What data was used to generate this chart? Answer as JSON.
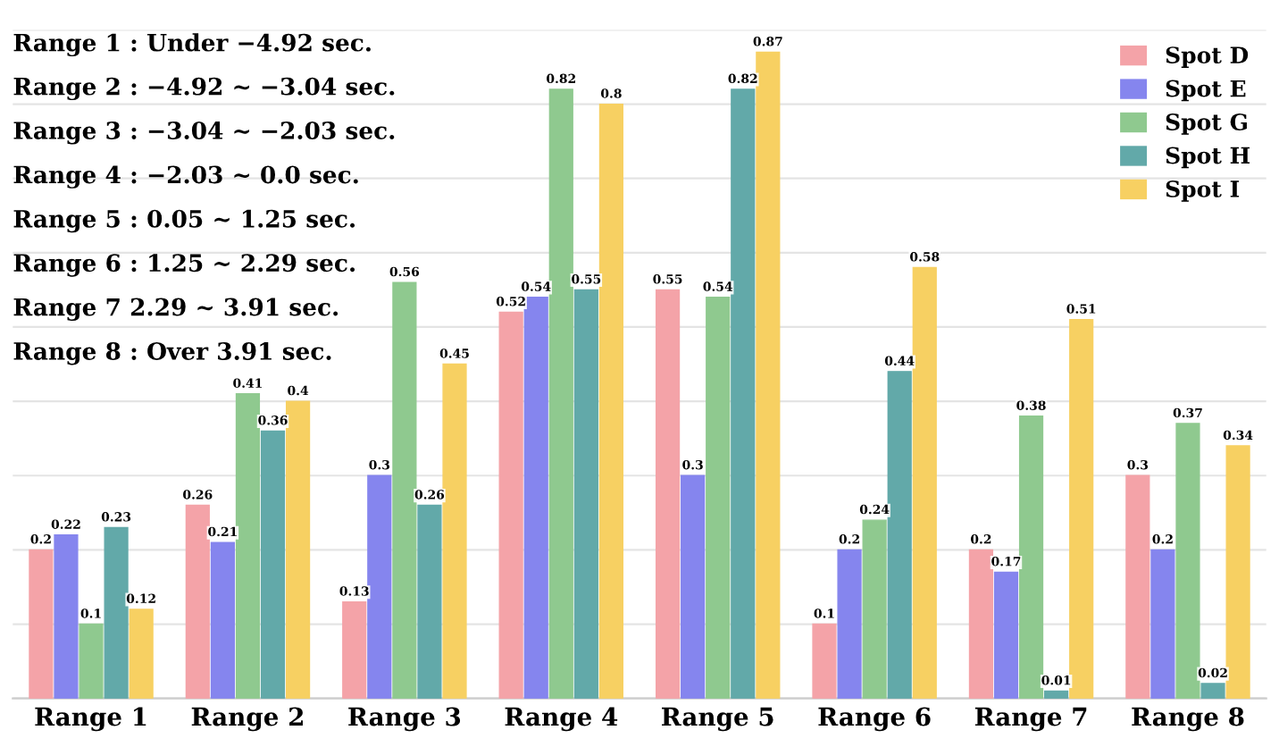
{
  "chart_data": {
    "type": "bar",
    "categories": [
      "Range 1",
      "Range 2",
      "Range 3",
      "Range 4",
      "Range 5",
      "Range 6",
      "Range 7",
      "Range 8"
    ],
    "series": [
      {
        "name": "Spot D",
        "color": "#f4a3a8",
        "values": [
          0.2,
          0.26,
          0.13,
          0.52,
          0.55,
          0.1,
          0.2,
          0.3
        ]
      },
      {
        "name": "Spot E",
        "color": "#8585ee",
        "values": [
          0.22,
          0.21,
          0.3,
          0.54,
          0.3,
          0.2,
          0.17,
          0.2
        ]
      },
      {
        "name": "Spot G",
        "color": "#8fc98f",
        "values": [
          0.1,
          0.41,
          0.56,
          0.82,
          0.54,
          0.24,
          0.38,
          0.37
        ]
      },
      {
        "name": "Spot H",
        "color": "#62a9a9",
        "values": [
          0.23,
          0.36,
          0.26,
          0.55,
          0.82,
          0.44,
          0.01,
          0.02
        ]
      },
      {
        "name": "Spot I",
        "color": "#f7d062",
        "values": [
          0.12,
          0.4,
          0.45,
          0.8,
          0.87,
          0.58,
          0.51,
          0.34
        ]
      }
    ],
    "ylim": [
      0,
      0.9
    ],
    "yticks": [
      {
        "value": 0,
        "label": null
      },
      {
        "value": 0.1,
        "label": null
      },
      {
        "value": 0.2,
        "label": null
      },
      {
        "value": 0.3,
        "label": null
      },
      {
        "value": 0.4,
        "label": null
      },
      {
        "value": 0.5,
        "label": null
      },
      {
        "value": 0.6,
        "label": null
      },
      {
        "value": 0.7,
        "label": null
      },
      {
        "value": 0.8,
        "label": null
      },
      {
        "value": 0.9,
        "label": null
      }
    ],
    "tick_labels": "x",
    "grid": "y",
    "legend": "top right",
    "data_labels": true,
    "annotations": [
      "Range 1 : Under −4.92 sec.",
      "Range 2 : −4.92 ~ −3.04 sec.",
      "Range 3 : −3.04 ~ −2.03 sec.",
      "Range 4 : −2.03 ~ 0.0 sec.",
      "Range 5 : 0.05 ~ 1.25 sec.",
      "Range 6 : 1.25 ~ 2.29 sec.",
      "Range 7 2.29 ~ 3.91 sec.",
      "Range 8 : Over 3.91 sec."
    ]
  }
}
